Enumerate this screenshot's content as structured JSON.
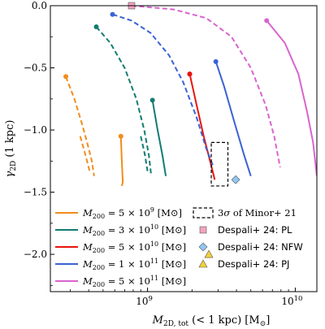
{
  "chart_data": {
    "type": "line",
    "xlabel": "M_2D,tot (<1 kpc) [M⊙]",
    "ylabel": "γ_2D (1 kpc)",
    "xscale": "log",
    "xlim": [
      220000000,
      14000000000
    ],
    "ylim": [
      -2.3,
      0.0
    ],
    "x_ticks": [
      {
        "value": 1000000000,
        "label": "10^9"
      },
      {
        "value": 10000000000,
        "label": "10^10"
      }
    ],
    "y_ticks": [
      {
        "value": 0.0,
        "label": "0.0"
      },
      {
        "value": -0.5,
        "label": "−0.5"
      },
      {
        "value": -1.0,
        "label": "−1.0"
      },
      {
        "value": -1.5,
        "label": "−1.5"
      },
      {
        "value": -2.0,
        "label": "−2.0"
      }
    ],
    "grid": false,
    "legend_placement": "lower-right",
    "series": [
      {
        "name": "M200 = 5×10^9 [M⊙]",
        "legend_main": "M",
        "legend_sub": "200",
        "legend_eq": " = 5 × 10",
        "legend_sup": "9",
        "legend_unit": " [M⊙]",
        "color": "#f28c1c",
        "start": [
          280000000,
          -0.57
        ],
        "dashed": [
          [
            280000000,
            -0.57
          ],
          [
            320000000,
            -0.75
          ],
          [
            360000000,
            -0.95
          ],
          [
            390000000,
            -1.1
          ],
          [
            420000000,
            -1.25
          ],
          [
            435000000,
            -1.37
          ]
        ],
        "solid": [
          [
            660000000,
            -1.05
          ],
          [
            670000000,
            -1.25
          ],
          [
            680000000,
            -1.42
          ],
          [
            670000000,
            -1.45
          ]
        ],
        "extra_dashed": [
          [
            350000000,
            -1.05
          ],
          [
            380000000,
            -1.2
          ],
          [
            405000000,
            -1.33
          ]
        ]
      },
      {
        "name": "M200 = 3×10^10 [M⊙]",
        "legend_main": "M",
        "legend_sub": "200",
        "legend_eq": " = 3 × 10",
        "legend_sup": "10",
        "legend_unit": " [M⊙]",
        "color": "#127c72",
        "start": [
          450000000,
          -0.17
        ],
        "dashed": [
          [
            450000000,
            -0.17
          ],
          [
            560000000,
            -0.3
          ],
          [
            700000000,
            -0.5
          ],
          [
            840000000,
            -0.75
          ],
          [
            950000000,
            -1.0
          ],
          [
            1020000000,
            -1.2
          ],
          [
            1060000000,
            -1.37
          ]
        ],
        "solid": [
          [
            1080000000,
            -0.76
          ],
          [
            1170000000,
            -1.0
          ],
          [
            1260000000,
            -1.2
          ],
          [
            1330000000,
            -1.37
          ]
        ],
        "extra_dashed": [
          [
            900000000,
            -1.05
          ],
          [
            960000000,
            -1.2
          ],
          [
            1000000000,
            -1.33
          ]
        ]
      },
      {
        "name": "M200 = 5×10^10 [M⊙]",
        "legend_main": "M",
        "legend_sub": "200",
        "legend_eq": " = 5 × 10",
        "legend_sup": "10",
        "legend_unit": " [M⊙]",
        "color": "#e8140e",
        "start": [
          1930000000,
          -0.55
        ],
        "dashed": [],
        "solid": [
          [
            1930000000,
            -0.55
          ],
          [
            2150000000,
            -0.8
          ],
          [
            2400000000,
            -1.05
          ],
          [
            2650000000,
            -1.25
          ],
          [
            2850000000,
            -1.4
          ]
        ],
        "extra_dashed": []
      },
      {
        "name": "M200 = 1×10^11 [M⊙]",
        "legend_main": "M",
        "legend_sub": "200",
        "legend_eq": " = 1 × 10",
        "legend_sup": "11",
        "legend_unit": " [M⊙]",
        "color": "#3a62d4",
        "start": [
          580000000,
          -0.07
        ],
        "dashed": [
          [
            580000000,
            -0.07
          ],
          [
            780000000,
            -0.12
          ],
          [
            1050000000,
            -0.22
          ],
          [
            1400000000,
            -0.4
          ],
          [
            1750000000,
            -0.62
          ],
          [
            2150000000,
            -0.9
          ],
          [
            2500000000,
            -1.15
          ],
          [
            2800000000,
            -1.3
          ]
        ],
        "solid": [
          [
            2900000000,
            -0.45
          ],
          [
            3300000000,
            -0.65
          ],
          [
            3900000000,
            -0.95
          ],
          [
            4500000000,
            -1.2
          ],
          [
            5000000000,
            -1.37
          ]
        ],
        "extra_dashed": []
      },
      {
        "name": "M200 = 5×10^11 [M⊙]",
        "legend_main": "M",
        "legend_sub": "200",
        "legend_eq": " = 5 × 10",
        "legend_sup": "11",
        "legend_unit": " [M⊙]",
        "color": "#d964cf",
        "start": [
          780000000,
          0.0
        ],
        "dashed": [
          [
            780000000,
            0.0
          ],
          [
            1500000000,
            -0.03
          ],
          [
            2500000000,
            -0.1
          ],
          [
            3700000000,
            -0.25
          ],
          [
            5000000000,
            -0.5
          ],
          [
            6300000000,
            -0.8
          ],
          [
            7200000000,
            -1.05
          ],
          [
            7900000000,
            -1.3
          ]
        ],
        "solid": [
          [
            6400000000,
            -0.12
          ],
          [
            8500000000,
            -0.3
          ],
          [
            10500000000,
            -0.55
          ],
          [
            12000000000,
            -0.85
          ],
          [
            13200000000,
            -1.1
          ],
          [
            14000000000,
            -1.37
          ]
        ],
        "extra_dashed": []
      }
    ],
    "observations": [
      {
        "name": "3σ of Minor+ 21",
        "type": "box",
        "x_range": [
          2700000000,
          3500000000
        ],
        "y_range": [
          -1.45,
          -1.1
        ]
      },
      {
        "name": "Despali+ 24: PL",
        "type": "square",
        "color": "#f4a3c0",
        "x": 780000000,
        "y": 0.0
      },
      {
        "name": "Despali+ 24: NFW",
        "type": "diamond",
        "color": "#8fc8f2",
        "x": 3950000000,
        "y": -1.4
      },
      {
        "name": "Despali+ 24: PJ",
        "type": "triangle",
        "color": "#f2d23a",
        "x": 2600000000,
        "y": -2.0
      }
    ]
  }
}
